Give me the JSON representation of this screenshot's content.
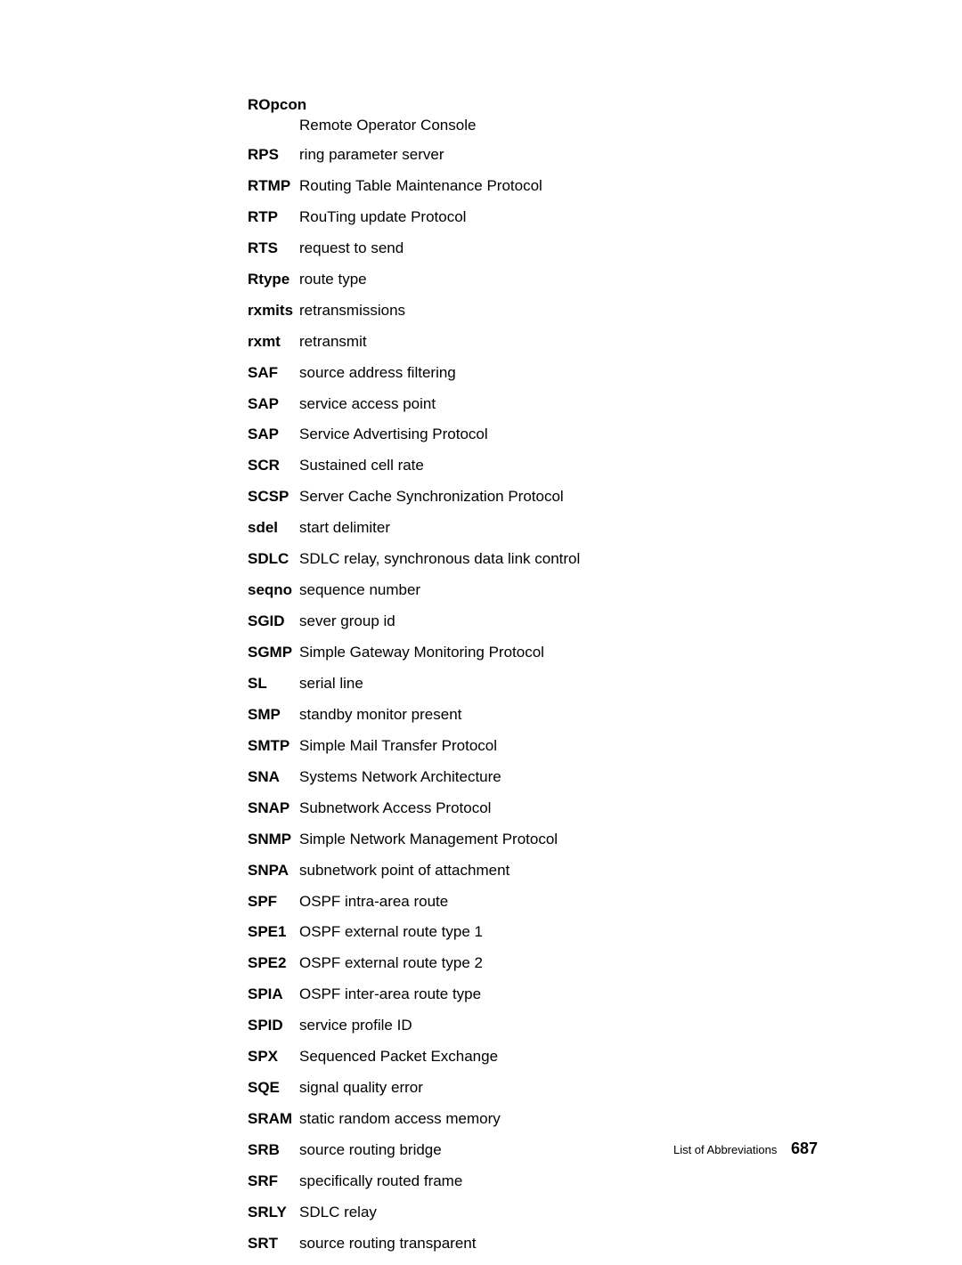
{
  "entries": [
    {
      "abbr": "ROpcon",
      "def": "Remote Operator Console",
      "wrap": true
    },
    {
      "abbr": "RPS",
      "def": "ring parameter server"
    },
    {
      "abbr": "RTMP",
      "def": "Routing Table Maintenance Protocol"
    },
    {
      "abbr": "RTP",
      "def": "RouTing update Protocol"
    },
    {
      "abbr": "RTS",
      "def": "request to send"
    },
    {
      "abbr": "Rtype",
      "def": "route type"
    },
    {
      "abbr": "rxmits",
      "def": "retransmissions"
    },
    {
      "abbr": "rxmt",
      "def": "retransmit"
    },
    {
      "abbr": "SAF",
      "def": "source address filtering"
    },
    {
      "abbr": "SAP",
      "def": "service access point"
    },
    {
      "abbr": "SAP",
      "def": "Service Advertising Protocol"
    },
    {
      "abbr": "SCR",
      "def": "Sustained cell rate"
    },
    {
      "abbr": "SCSP",
      "def": "Server Cache Synchronization Protocol"
    },
    {
      "abbr": "sdel",
      "def": "start delimiter"
    },
    {
      "abbr": "SDLC",
      "def": "SDLC relay, synchronous data link control"
    },
    {
      "abbr": "seqno",
      "def": "sequence number"
    },
    {
      "abbr": "SGID",
      "def": "sever group id"
    },
    {
      "abbr": "SGMP",
      "def": "Simple Gateway Monitoring Protocol"
    },
    {
      "abbr": "SL",
      "def": "serial line"
    },
    {
      "abbr": "SMP",
      "def": "standby monitor present"
    },
    {
      "abbr": "SMTP",
      "def": "Simple Mail Transfer Protocol"
    },
    {
      "abbr": "SNA",
      "def": "Systems Network Architecture"
    },
    {
      "abbr": "SNAP",
      "def": "Subnetwork Access Protocol"
    },
    {
      "abbr": "SNMP",
      "def": "Simple Network Management Protocol"
    },
    {
      "abbr": "SNPA",
      "def": "subnetwork point of attachment"
    },
    {
      "abbr": "SPF",
      "def": "OSPF intra-area route"
    },
    {
      "abbr": "SPE1",
      "def": "OSPF external route type 1"
    },
    {
      "abbr": "SPE2",
      "def": "OSPF external route type 2"
    },
    {
      "abbr": "SPIA",
      "def": "OSPF inter-area route type"
    },
    {
      "abbr": "SPID",
      "def": "service profile ID"
    },
    {
      "abbr": "SPX",
      "def": "Sequenced Packet Exchange"
    },
    {
      "abbr": "SQE",
      "def": "signal quality error"
    },
    {
      "abbr": "SRAM",
      "def": "static random access memory"
    },
    {
      "abbr": "SRB",
      "def": "source routing bridge"
    },
    {
      "abbr": "SRF",
      "def": "specifically routed frame"
    },
    {
      "abbr": "SRLY",
      "def": "SDLC relay"
    },
    {
      "abbr": "SRT",
      "def": "source routing transparent"
    }
  ],
  "footer": {
    "label": "List of Abbreviations",
    "page": "687"
  }
}
